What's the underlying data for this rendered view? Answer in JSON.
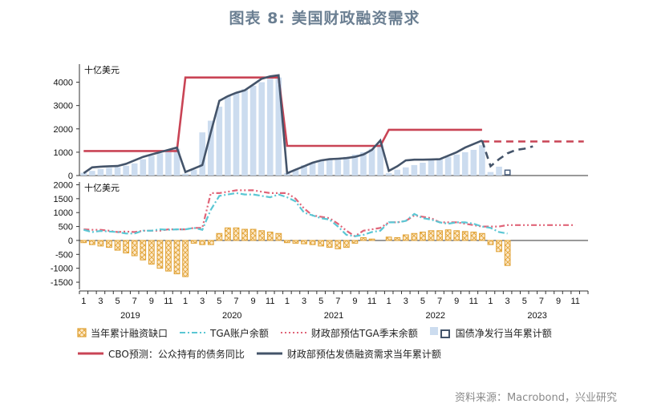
{
  "title": "图表 8:   美国财政融资需求",
  "source": "资料来源：Macrobond，兴业研究",
  "colors": {
    "bar": "#ccdcef",
    "bar_hatched_stroke": "#4a6080",
    "gap_fill": "#fde2b8",
    "gap_stroke": "#e0a235",
    "tga": "#5bc7d4",
    "tga_forecast": "#e06478",
    "cbo": "#c94455",
    "need": "#44546a"
  },
  "chart_data": [
    {
      "type": "bar",
      "panel": "top",
      "unit_label": "十亿美元",
      "ylim": [
        0,
        4500
      ],
      "yticks": [
        0,
        1000,
        2000,
        3000,
        4000
      ],
      "x_months": [
        "2019-01",
        "2019-02",
        "2019-03",
        "2019-04",
        "2019-05",
        "2019-06",
        "2019-07",
        "2019-08",
        "2019-09",
        "2019-10",
        "2019-11",
        "2019-12",
        "2020-01",
        "2020-02",
        "2020-03",
        "2020-04",
        "2020-05",
        "2020-06",
        "2020-07",
        "2020-08",
        "2020-09",
        "2020-10",
        "2020-11",
        "2020-12",
        "2021-01",
        "2021-02",
        "2021-03",
        "2021-04",
        "2021-05",
        "2021-06",
        "2021-07",
        "2021-08",
        "2021-09",
        "2021-10",
        "2021-11",
        "2021-12",
        "2022-01",
        "2022-02",
        "2022-03",
        "2022-04",
        "2022-05",
        "2022-06",
        "2022-07",
        "2022-08",
        "2022-09",
        "2022-10",
        "2022-11",
        "2022-12",
        "2023-01",
        "2023-02",
        "2023-03"
      ],
      "series": [
        {
          "name": "国债净发行当年累计额",
          "style": "bar",
          "values": [
            120,
            200,
            280,
            330,
            360,
            420,
            520,
            700,
            850,
            950,
            1050,
            1150,
            80,
            250,
            1850,
            2350,
            2950,
            3400,
            3550,
            3700,
            3850,
            4000,
            4150,
            4200,
            100,
            250,
            450,
            550,
            650,
            700,
            750,
            800,
            900,
            1000,
            1150,
            1350,
            100,
            250,
            350,
            450,
            550,
            650,
            700,
            800,
            900,
            1000,
            1100,
            1300,
            150,
            380,
            null
          ]
        },
        {
          "name": "国债净发行当年累计额",
          "style": "hatched-bar",
          "values": [
            null,
            null,
            null,
            null,
            null,
            null,
            null,
            null,
            null,
            null,
            null,
            null,
            null,
            null,
            null,
            null,
            null,
            null,
            null,
            null,
            null,
            null,
            null,
            null,
            null,
            null,
            null,
            null,
            null,
            null,
            null,
            null,
            null,
            null,
            null,
            null,
            null,
            null,
            null,
            null,
            null,
            null,
            null,
            null,
            null,
            null,
            null,
            null,
            null,
            null,
            300
          ]
        },
        {
          "name": "CBO预测：公众持有的债务同比",
          "style": "line",
          "values": [
            1050,
            1050,
            1050,
            1050,
            1050,
            1050,
            1050,
            1050,
            1050,
            1050,
            1050,
            1050,
            4200,
            4200,
            4200,
            4200,
            4200,
            4200,
            4200,
            4200,
            4200,
            4200,
            4200,
            4200,
            1270,
            1270,
            1270,
            1270,
            1270,
            1270,
            1270,
            1270,
            1270,
            1270,
            1270,
            1270,
            1960,
            1960,
            1960,
            1960,
            1960,
            1960,
            1960,
            1960,
            1960,
            1960,
            1960,
            1960
          ],
          "forecast": {
            "x_start": "2022-12",
            "x_end": "2023-12",
            "value": 1460
          }
        },
        {
          "name": "财政部预估发债融资需求当年累计额",
          "style": "line",
          "values": [
            100,
            350,
            380,
            400,
            410,
            500,
            650,
            800,
            900,
            1000,
            1100,
            1200,
            150,
            300,
            450,
            1850,
            3200,
            3400,
            3550,
            3650,
            3900,
            4150,
            4250,
            4300,
            100,
            250,
            400,
            550,
            650,
            700,
            720,
            750,
            800,
            900,
            1100,
            1500,
            200,
            400,
            650,
            680,
            680,
            690,
            700,
            850,
            1000,
            1200,
            1350,
            1500
          ],
          "forecast_points": [
            [
              "2022-12",
              1500
            ],
            [
              "2023-01",
              400
            ],
            [
              "2023-02",
              700
            ],
            [
              "2023-03",
              950
            ],
            [
              "2023-04",
              1100
            ],
            [
              "2023-05",
              1150
            ],
            [
              "2023-06",
              1250
            ]
          ]
        }
      ]
    },
    {
      "type": "line",
      "panel": "bottom",
      "unit_label": "十亿美元",
      "ylim": [
        -1700,
        2100
      ],
      "yticks": [
        -1500,
        -1000,
        -500,
        0,
        500,
        1000,
        1500,
        2000
      ],
      "x_tick_labels": [
        "1",
        "3",
        "5",
        "7",
        "9",
        "11",
        "1",
        "3",
        "5",
        "7",
        "9",
        "11",
        "1",
        "3",
        "5",
        "7",
        "9",
        "11",
        "1",
        "3",
        "5",
        "7",
        "9",
        "11",
        "1",
        "3",
        "5",
        "7",
        "9",
        "11"
      ],
      "x_year_labels": [
        "2019",
        "2020",
        "2021",
        "2022",
        "2023"
      ],
      "series": [
        {
          "name": "当年累计融资缺口",
          "style": "hatched-bar",
          "values": [
            -80,
            -150,
            -200,
            -250,
            -350,
            -450,
            -550,
            -700,
            -850,
            -1000,
            -1100,
            -1200,
            -1300,
            -100,
            -150,
            -150,
            250,
            450,
            450,
            400,
            400,
            350,
            300,
            250,
            -80,
            -100,
            -120,
            -150,
            -200,
            -250,
            -300,
            -250,
            -100,
            100,
            50,
            0,
            120,
            100,
            200,
            250,
            300,
            350,
            350,
            380,
            350,
            320,
            300,
            250,
            -150,
            -400,
            -900
          ]
        },
        {
          "name": "TGA账户余额",
          "style": "dash-dot",
          "values": [
            380,
            300,
            340,
            320,
            300,
            250,
            250,
            350,
            350,
            400,
            380,
            400,
            400,
            450,
            380,
            1100,
            1600,
            1650,
            1700,
            1650,
            1650,
            1600,
            1550,
            1650,
            1550,
            1400,
            1000,
            900,
            800,
            750,
            500,
            200,
            150,
            200,
            300,
            350,
            650,
            650,
            700,
            950,
            800,
            750,
            650,
            600,
            650,
            650,
            600,
            500,
            450,
            300,
            250
          ]
        },
        {
          "name": "财政部预估TGA季末余额",
          "style": "dash-dot-dot",
          "values": [
            400,
            380,
            380,
            350,
            300,
            320,
            300,
            350,
            350,
            350,
            400,
            400,
            400,
            450,
            450,
            1700,
            1700,
            1750,
            1800,
            1800,
            1800,
            1750,
            1700,
            1700,
            1700,
            1500,
            1150,
            900,
            850,
            800,
            600,
            350,
            150,
            350,
            400,
            450,
            650,
            650,
            700,
            900,
            850,
            800,
            650,
            650,
            650,
            600,
            550,
            500,
            500,
            500,
            550,
            550,
            550,
            550,
            550,
            550,
            550,
            550,
            550
          ]
        }
      ]
    }
  ],
  "legend": {
    "row1": [
      {
        "label": "当年累计融资缺口",
        "swatch": "hatched-orange"
      },
      {
        "label": "TGA账户余额",
        "swatch": "dash-dot-teal"
      },
      {
        "label": "财政部预估TGA季末余额",
        "swatch": "dash-dot-pink"
      },
      {
        "label": "国债净发行当年累计额",
        "swatch": "bar-blue-and-hatched"
      }
    ],
    "row2": [
      {
        "label": "CBO预测：公众持有的债务同比",
        "swatch": "line-red"
      },
      {
        "label": "财政部预估发债融资需求当年累计额",
        "swatch": "line-navy"
      }
    ]
  }
}
